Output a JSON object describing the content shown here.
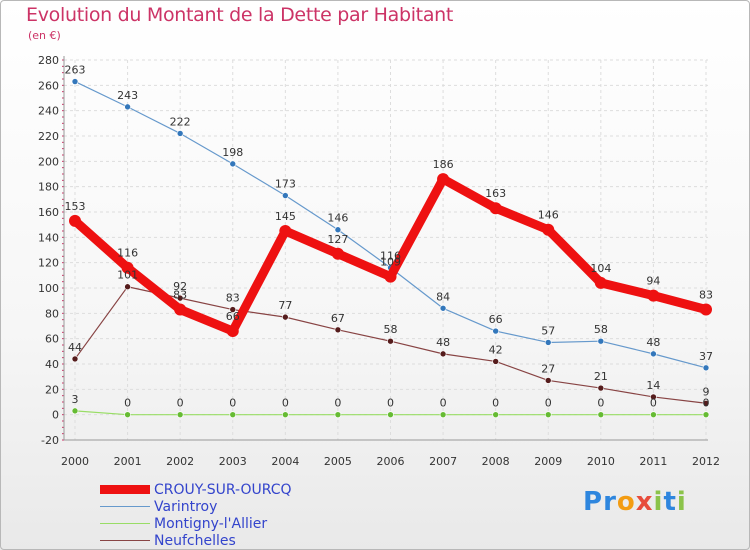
{
  "title": "Evolution du Montant de la Dette par Habitant",
  "subtitle": "(en €)",
  "logo": {
    "text": "Proxiti",
    "letters": [
      {
        "ch": "P",
        "color": "#2e86de"
      },
      {
        "ch": "r",
        "color": "#2e86de"
      },
      {
        "ch": "o",
        "color": "#f39c12"
      },
      {
        "ch": "x",
        "color": "#e74c3c"
      },
      {
        "ch": "i",
        "color": "#8bc34a"
      },
      {
        "ch": "t",
        "color": "#2e86de"
      },
      {
        "ch": "i",
        "color": "#8bc34a"
      }
    ]
  },
  "chart_data": {
    "type": "line",
    "title": "Evolution du Montant de la Dette par Habitant",
    "subtitle": "(en €)",
    "x": [
      "2000",
      "2001",
      "2002",
      "2003",
      "2004",
      "2005",
      "2006",
      "2007",
      "2008",
      "2009",
      "2010",
      "2011",
      "2012"
    ],
    "ylim": [
      -20,
      280
    ],
    "yticks": [
      -20,
      0,
      20,
      40,
      60,
      80,
      100,
      120,
      140,
      160,
      180,
      200,
      220,
      240,
      260,
      280
    ],
    "grid": true,
    "legend_position": "bottom-left",
    "series": [
      {
        "name": "CROUY-SUR-OURCQ",
        "color": "#ee1111",
        "values": [
          153,
          116,
          83,
          66,
          145,
          127,
          109,
          186,
          163,
          146,
          104,
          94,
          83
        ],
        "labels": [
          "153",
          "116",
          "83",
          "66",
          "145",
          "127",
          "109",
          "186",
          "163",
          "146",
          "104",
          "94",
          "83"
        ]
      },
      {
        "name": "Varintroy",
        "color": "#6699cc",
        "values": [
          263,
          243,
          222,
          198,
          173,
          146,
          116,
          84,
          66,
          57,
          58,
          48,
          37
        ],
        "labels": [
          "263",
          "243",
          "222",
          "198",
          "173",
          "146",
          "116",
          "84",
          "66",
          "57",
          "58",
          "48",
          "37"
        ]
      },
      {
        "name": "Montigny-l'Allier",
        "color": "#99dd66",
        "values": [
          3,
          0,
          0,
          0,
          0,
          0,
          0,
          0,
          0,
          0,
          0,
          0,
          0
        ],
        "labels": [
          "3",
          "0",
          "0",
          "0",
          "0",
          "0",
          "0",
          "0",
          "0",
          "0",
          "0",
          "0",
          "0"
        ]
      },
      {
        "name": "Neufchelles",
        "color": "#884444",
        "values": [
          44,
          101,
          92,
          83,
          77,
          67,
          58,
          48,
          42,
          27,
          21,
          14,
          9
        ],
        "labels": [
          "44",
          "101",
          "92",
          "83",
          "77",
          "67",
          "58",
          "48",
          "42",
          "27",
          "21",
          "14",
          "9"
        ]
      }
    ]
  }
}
